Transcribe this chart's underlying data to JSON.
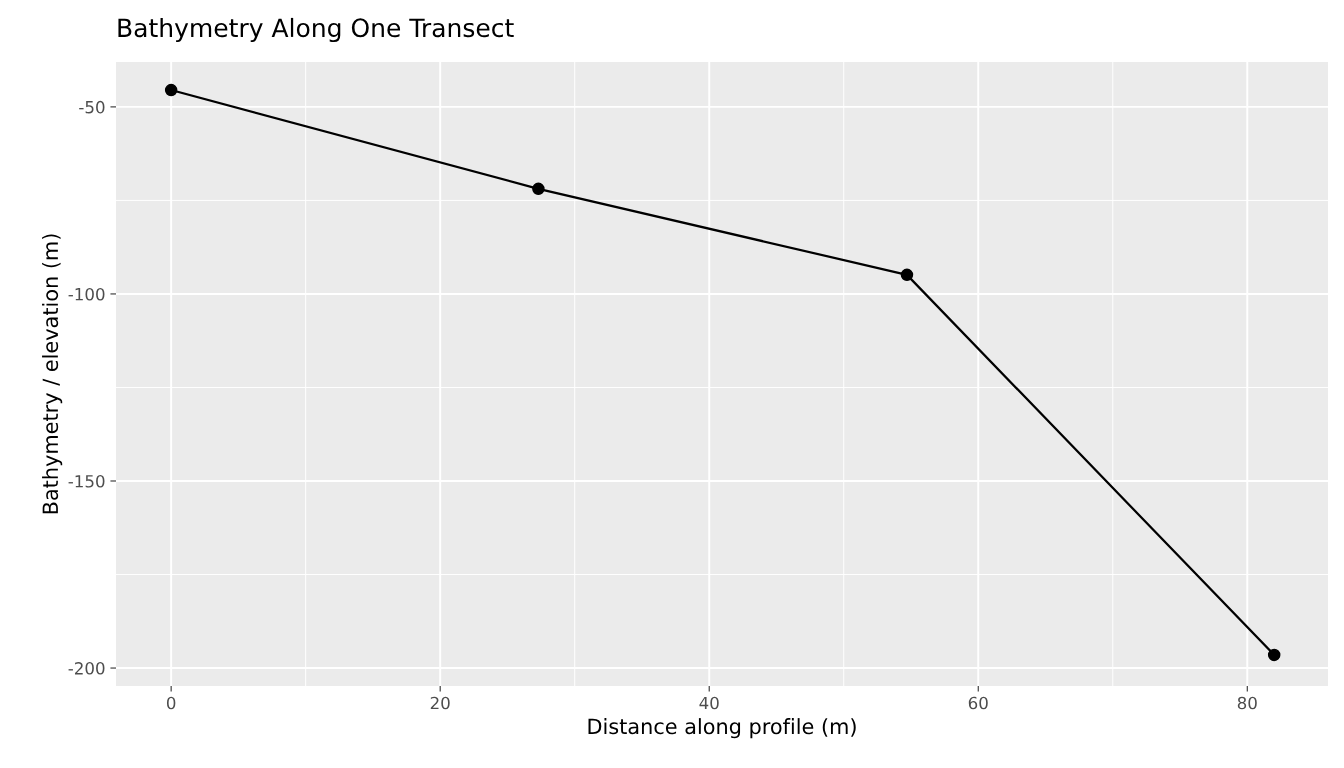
{
  "chart_data": {
    "type": "line",
    "title": "Bathymetry Along One Transect",
    "xlabel": "Distance along profile (m)",
    "ylabel": "Bathymetry / elevation (m)",
    "x": [
      0,
      27.3,
      54.7,
      82.0
    ],
    "series": [
      {
        "color": "#000000",
        "values": [
          -45.5,
          -71.9,
          -94.9,
          -196.5
        ]
      }
    ],
    "marker": "circle",
    "line_style": "solid",
    "grid": true,
    "xlim": [
      -4.1,
      86.0
    ],
    "ylim": [
      -204.8,
      -38.0
    ],
    "xticks": [
      0,
      20,
      40,
      60,
      80
    ],
    "yticks": [
      -200,
      -150,
      -100,
      -50
    ]
  }
}
